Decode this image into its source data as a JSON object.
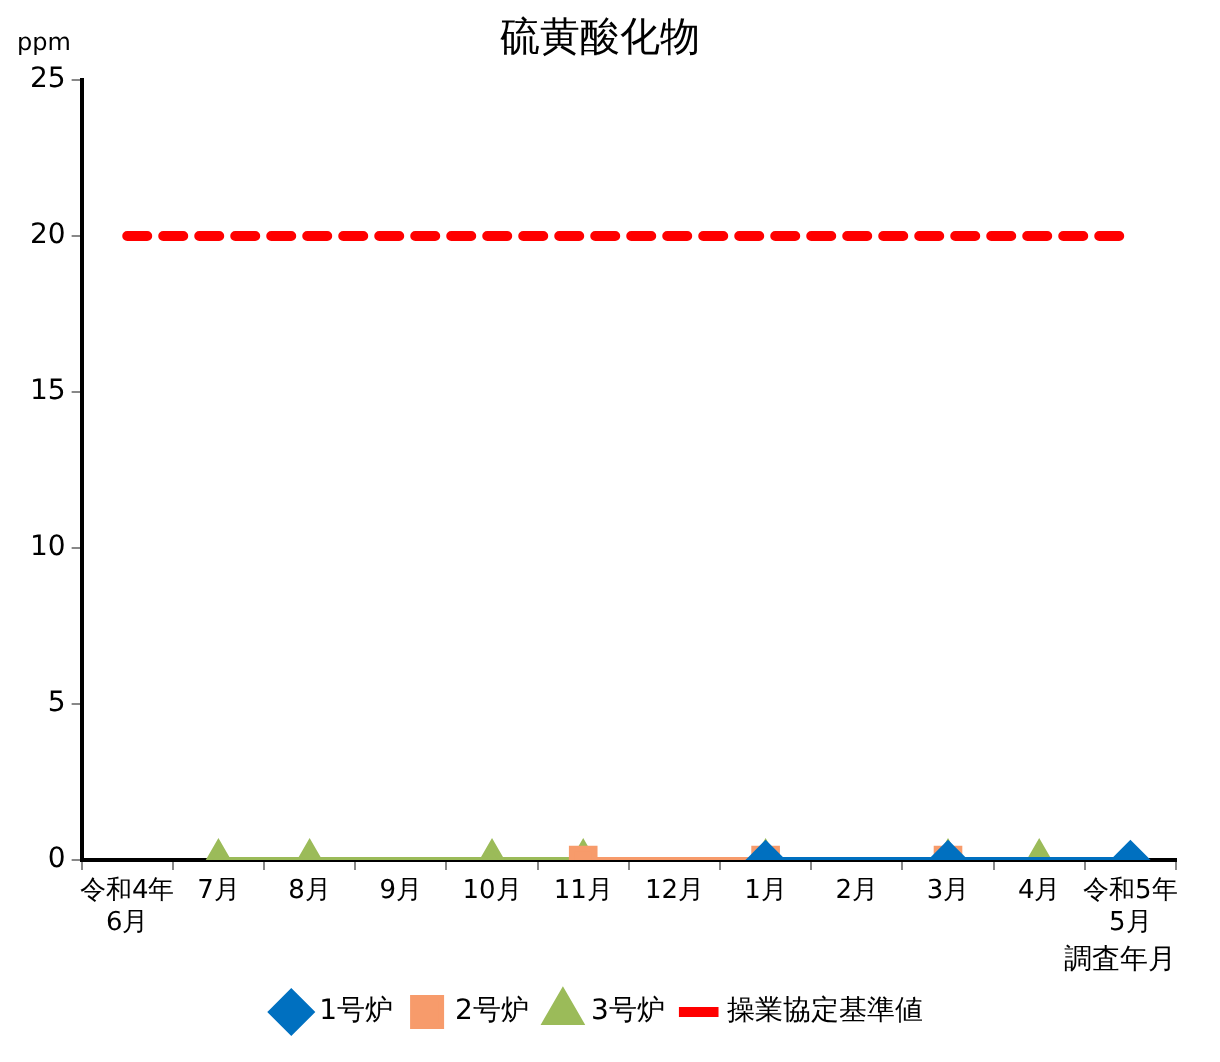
{
  "chart_data": {
    "type": "line",
    "title": "硫黄酸化物",
    "ylabel": "ppm",
    "xlabel": "調査年月",
    "categories": [
      "令和4年\n6月",
      "7月",
      "8月",
      "9月",
      "10月",
      "11月",
      "12月",
      "1月",
      "2月",
      "3月",
      "4月",
      "令和5年\n5月"
    ],
    "series": [
      {
        "name": "1号炉",
        "color": "#0070c0",
        "marker": "diamond",
        "values": [
          null,
          null,
          null,
          null,
          null,
          null,
          null,
          0,
          null,
          0,
          null,
          0
        ]
      },
      {
        "name": "2号炉",
        "color": "#f79b6b",
        "marker": "square",
        "values": [
          null,
          null,
          null,
          null,
          null,
          0,
          null,
          0,
          null,
          0,
          null,
          null
        ]
      },
      {
        "name": "3号炉",
        "color": "#9bbb59",
        "marker": "triangle",
        "values": [
          null,
          0,
          0,
          null,
          0,
          0,
          null,
          0,
          null,
          0,
          0,
          null
        ]
      },
      {
        "name": "操業協定基準値",
        "color": "#ff0000",
        "marker": "none",
        "line_style": "dashed",
        "values": [
          20,
          20,
          20,
          20,
          20,
          20,
          20,
          20,
          20,
          20,
          20,
          20
        ]
      }
    ],
    "ylim": [
      0,
      25
    ],
    "yticks": [
      0,
      5,
      10,
      15,
      20,
      25
    ],
    "grid": false,
    "legend": "bottom"
  }
}
